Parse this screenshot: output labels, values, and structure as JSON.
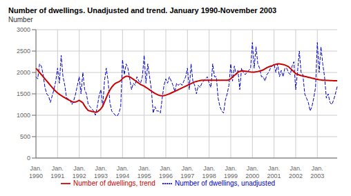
{
  "chart_data": {
    "type": "line",
    "title": "Number of dwellings. Unadjusted and trend. January 1990-November 2003",
    "ylabel": "Number",
    "ylim": [
      0,
      3000
    ],
    "yticks": [
      0,
      500,
      1000,
      1500,
      2000,
      2500,
      3000
    ],
    "grid": true,
    "legend": "bottom",
    "categories": [
      "Jan.\n1990",
      null,
      null,
      null,
      null,
      null,
      null,
      null,
      null,
      null,
      null,
      null,
      "Jan.\n1991",
      null,
      null,
      null,
      null,
      null,
      null,
      null,
      null,
      null,
      null,
      null,
      "Jan.\n1992",
      null,
      null,
      null,
      null,
      null,
      null,
      null,
      null,
      null,
      null,
      null,
      "Jan.\n1993",
      null,
      null,
      null,
      null,
      null,
      null,
      null,
      null,
      null,
      null,
      null,
      "Jan.\n1994",
      null,
      null,
      null,
      null,
      null,
      null,
      null,
      null,
      null,
      null,
      null,
      "Jan.\n1995",
      null,
      null,
      null,
      null,
      null,
      null,
      null,
      null,
      null,
      null,
      null,
      "Jan.\n1996",
      null,
      null,
      null,
      null,
      null,
      null,
      null,
      null,
      null,
      null,
      null,
      "Jan.\n1997",
      null,
      null,
      null,
      null,
      null,
      null,
      null,
      null,
      null,
      null,
      null,
      "Jan.\n1998",
      null,
      null,
      null,
      null,
      null,
      null,
      null,
      null,
      null,
      null,
      null,
      "Jan.\n1999",
      null,
      null,
      null,
      null,
      null,
      null,
      null,
      null,
      null,
      null,
      null,
      "Jan.\n2000",
      null,
      null,
      null,
      null,
      null,
      null,
      null,
      null,
      null,
      null,
      null,
      "Jan.\n2001",
      null,
      null,
      null,
      null,
      null,
      null,
      null,
      null,
      null,
      null,
      null,
      "Jan.\n2002",
      null,
      null,
      null,
      null,
      null,
      null,
      null,
      null,
      null,
      null,
      null,
      "Jan.\n2003",
      null,
      null,
      null,
      null,
      null,
      null,
      null,
      null,
      null,
      null,
      null
    ],
    "series": [
      {
        "name": "Number of dwellings, unadjusted",
        "color": "#0000CC",
        "line_style": "dashed",
        "values": [
          1900,
          1850,
          2200,
          2150,
          1950,
          1650,
          1500,
          1450,
          1300,
          1450,
          1600,
          1800,
          2100,
          1750,
          2400,
          1900,
          1700,
          1400,
          1380,
          1350,
          1250,
          1350,
          1500,
          1700,
          1900,
          1500,
          2000,
          1600,
          1500,
          1250,
          1200,
          1150,
          1100,
          1000,
          1200,
          1450,
          1600,
          1200,
          1800,
          2100,
          1800,
          1300,
          1100,
          1050,
          1000,
          980,
          1050,
          1200,
          2300,
          1950,
          2200,
          2100,
          1850,
          1600,
          1750,
          1700,
          1900,
          1800,
          1750,
          1900,
          2400,
          1750,
          2200,
          1900,
          1600,
          1050,
          1200,
          1100,
          1100,
          1050,
          1400,
          1700,
          1850,
          1750,
          1900,
          1800,
          1700,
          1550,
          1750,
          1700,
          1750,
          1700,
          1800,
          1900,
          2100,
          1600,
          2200,
          1800,
          1700,
          1500,
          1700,
          1650,
          1750,
          1800,
          1850,
          1900,
          1750,
          1650,
          2200,
          1900,
          1900,
          1400,
          1200,
          1100,
          1050,
          1350,
          1500,
          1700,
          2200,
          1800,
          2150,
          1950,
          2050,
          1600,
          2100,
          2000,
          1950,
          2000,
          2050,
          2100,
          2700,
          2100,
          2600,
          2200,
          2100,
          1900,
          1900,
          1800,
          1950,
          2000,
          2100,
          2150,
          2200,
          2000,
          2200,
          1900,
          2050,
          1900,
          2100,
          2100,
          2000,
          1950,
          2150,
          2250,
          1600,
          2000,
          2500,
          2000,
          1950,
          1500,
          1400,
          1300,
          1100,
          1200,
          1400,
          1650,
          2700,
          2000,
          2600,
          2200,
          1900,
          1400,
          1500,
          1300,
          1250,
          1350,
          1500,
          1670
        ]
      },
      {
        "name": "Number of dwellings, trend",
        "color": "#CC0000",
        "line_style": "solid",
        "values": [
          2100,
          2050,
          2000,
          1950,
          1900,
          1850,
          1800,
          1750,
          1700,
          1650,
          1600,
          1560,
          1520,
          1490,
          1460,
          1435,
          1410,
          1385,
          1360,
          1340,
          1320,
          1305,
          1310,
          1330,
          1350,
          1320,
          1290,
          1220,
          1160,
          1110,
          1100,
          1090,
          1080,
          1070,
          1080,
          1110,
          1150,
          1210,
          1310,
          1410,
          1510,
          1590,
          1655,
          1705,
          1745,
          1765,
          1785,
          1810,
          1860,
          1890,
          1910,
          1910,
          1895,
          1870,
          1840,
          1810,
          1780,
          1750,
          1720,
          1700,
          1678,
          1650,
          1625,
          1595,
          1565,
          1538,
          1510,
          1490,
          1470,
          1460,
          1455,
          1460,
          1470,
          1485,
          1500,
          1520,
          1540,
          1560,
          1580,
          1600,
          1620,
          1640,
          1660,
          1680,
          1700,
          1720,
          1740,
          1760,
          1780,
          1790,
          1800,
          1810,
          1820,
          1820,
          1820,
          1820,
          1820,
          1820,
          1820,
          1820,
          1820,
          1820,
          1820,
          1820,
          1820,
          1820,
          1820,
          1825,
          1855,
          1890,
          1930,
          1965,
          2005,
          2025,
          2035,
          2035,
          2030,
          2025,
          2018,
          2012,
          2010,
          2010,
          2015,
          2022,
          2032,
          2045,
          2060,
          2085,
          2110,
          2130,
          2145,
          2160,
          2180,
          2190,
          2200,
          2200,
          2195,
          2185,
          2175,
          2155,
          2135,
          2095,
          2055,
          2015,
          1975,
          1955,
          1940,
          1928,
          1918,
          1908,
          1898,
          1888,
          1878,
          1868,
          1858,
          1848,
          1840,
          1832,
          1825,
          1820,
          1818,
          1816,
          1814,
          1812,
          1810,
          1808,
          1806,
          1805
        ]
      }
    ]
  }
}
